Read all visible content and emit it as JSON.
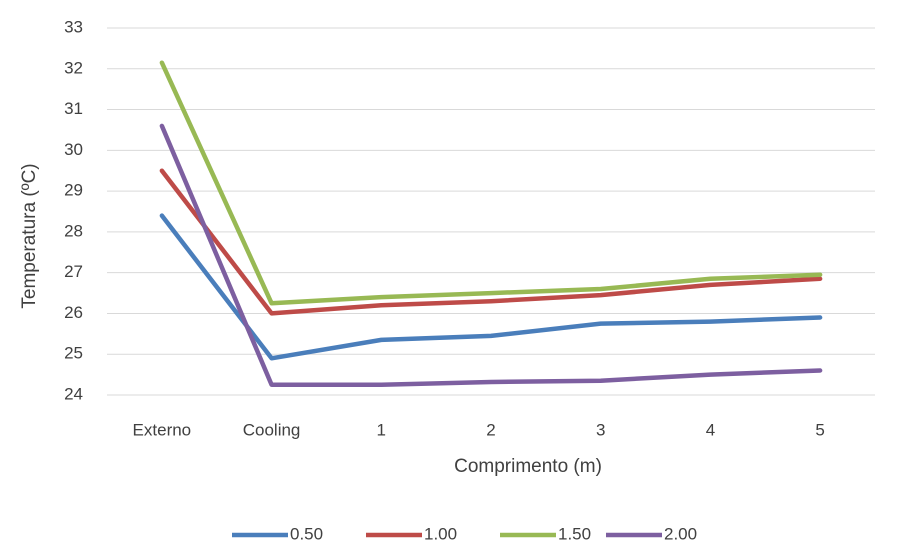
{
  "chart_data": {
    "type": "line",
    "title": "",
    "xlabel": "Comprimento (m)",
    "ylabel": "Temperatura (ºC)",
    "categories": [
      "Externo",
      "Cooling",
      "1",
      "2",
      "3",
      "4",
      "5"
    ],
    "ylim": [
      24,
      33
    ],
    "yticks": [
      "24",
      "25",
      "26",
      "27",
      "28",
      "29",
      "30",
      "31",
      "32",
      "33"
    ],
    "grid": "horizontal",
    "legend_position": "bottom",
    "series": [
      {
        "name": "0.50",
        "color": "#4a7ebb",
        "values": [
          28.4,
          24.9,
          25.35,
          25.45,
          25.75,
          25.8,
          25.9
        ]
      },
      {
        "name": "1.00",
        "color": "#be4b48",
        "values": [
          29.5,
          26.0,
          26.2,
          26.3,
          26.45,
          26.7,
          26.85
        ]
      },
      {
        "name": "1.50",
        "color": "#98b954",
        "values": [
          32.15,
          26.25,
          26.4,
          26.5,
          26.6,
          26.85,
          26.95
        ]
      },
      {
        "name": "2.00",
        "color": "#7d5fa0",
        "values": [
          30.6,
          24.25,
          24.25,
          24.32,
          24.35,
          24.5,
          24.6
        ]
      }
    ]
  }
}
